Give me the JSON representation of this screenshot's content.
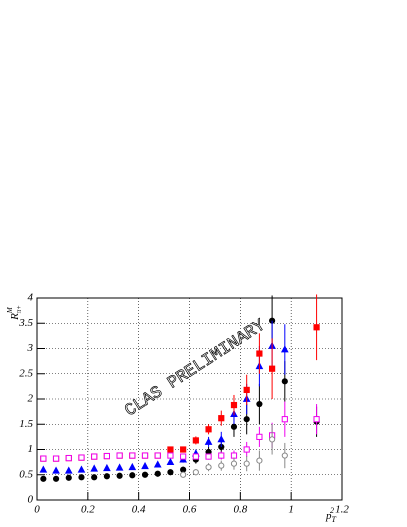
{
  "chart_data": {
    "type": "scatter",
    "ylabel": "R",
    "ylabel_sup": "M",
    "ylabel_sub": "π+",
    "xlabel": "p",
    "xlabel_sub": "T",
    "xlabel_sup": "2",
    "annotation": "CLAS PRELIMINARY",
    "xlim": [
      0,
      1.2
    ],
    "ylim": [
      0,
      4
    ],
    "xticks": [
      0,
      0.2,
      0.4,
      0.6,
      0.8,
      1,
      1.2
    ],
    "yticks": [
      0,
      0.5,
      1,
      1.5,
      2,
      2.5,
      3,
      3.5,
      4
    ],
    "grid": true,
    "series": [
      {
        "color": "#000000",
        "marker": "circle",
        "filled": true,
        "x": [
          0.025,
          0.075,
          0.125,
          0.175,
          0.225,
          0.275,
          0.325,
          0.375,
          0.425,
          0.475,
          0.525,
          0.575,
          0.625,
          0.675,
          0.725,
          0.775,
          0.825,
          0.875,
          0.925,
          0.975,
          1.1
        ],
        "values": [
          0.42,
          0.42,
          0.44,
          0.45,
          0.45,
          0.47,
          0.48,
          0.49,
          0.5,
          0.52,
          0.55,
          0.6,
          0.8,
          0.95,
          1.05,
          1.45,
          1.6,
          1.9,
          3.55,
          2.35,
          1.55
        ],
        "errors": [
          0.03,
          0.03,
          0.03,
          0.03,
          0.03,
          0.03,
          0.03,
          0.03,
          0.03,
          0.04,
          0.05,
          0.06,
          0.08,
          0.1,
          0.15,
          0.2,
          0.3,
          0.4,
          0.5,
          0.4,
          0.3
        ]
      },
      {
        "color": "#0000ff",
        "marker": "triangle",
        "filled": true,
        "x": [
          0.025,
          0.075,
          0.125,
          0.175,
          0.225,
          0.275,
          0.325,
          0.375,
          0.425,
          0.475,
          0.525,
          0.575,
          0.625,
          0.675,
          0.725,
          0.775,
          0.825,
          0.875,
          0.925,
          0.975
        ],
        "values": [
          0.6,
          0.58,
          0.58,
          0.6,
          0.62,
          0.63,
          0.64,
          0.65,
          0.67,
          0.7,
          0.75,
          0.8,
          0.92,
          1.15,
          1.2,
          1.7,
          2.0,
          2.65,
          3.05,
          2.98
        ],
        "errors": [
          0.03,
          0.03,
          0.03,
          0.03,
          0.03,
          0.03,
          0.03,
          0.03,
          0.03,
          0.04,
          0.05,
          0.06,
          0.08,
          0.1,
          0.15,
          0.2,
          0.3,
          0.4,
          0.5,
          0.5
        ]
      },
      {
        "color": "#ff0000",
        "marker": "square",
        "filled": true,
        "x": [
          0.025,
          0.075,
          0.125,
          0.175,
          0.225,
          0.275,
          0.325,
          0.375,
          0.425,
          0.475,
          0.525,
          0.575,
          0.625,
          0.675,
          0.725,
          0.775,
          0.825,
          0.875,
          0.925,
          1.1
        ],
        "values": [
          0.82,
          0.82,
          0.83,
          0.84,
          0.86,
          0.87,
          0.88,
          0.88,
          0.88,
          0.88,
          1.0,
          1.0,
          1.18,
          1.4,
          1.62,
          1.88,
          2.18,
          2.9,
          2.6,
          3.42
        ],
        "errors": [
          0.03,
          0.03,
          0.03,
          0.03,
          0.03,
          0.03,
          0.03,
          0.03,
          0.03,
          0.04,
          0.05,
          0.06,
          0.08,
          0.1,
          0.15,
          0.2,
          0.3,
          0.4,
          0.6,
          0.65
        ]
      },
      {
        "color": "#ee00ee",
        "marker": "square",
        "filled": false,
        "x": [
          0.025,
          0.075,
          0.125,
          0.175,
          0.225,
          0.275,
          0.325,
          0.375,
          0.425,
          0.475,
          0.525,
          0.575,
          0.625,
          0.675,
          0.725,
          0.775,
          0.825,
          0.875,
          0.925,
          0.975,
          1.1
        ],
        "values": [
          0.82,
          0.82,
          0.83,
          0.84,
          0.86,
          0.87,
          0.88,
          0.88,
          0.88,
          0.88,
          0.88,
          0.86,
          0.86,
          0.86,
          0.88,
          0.88,
          1.0,
          1.25,
          1.28,
          1.6,
          1.6
        ],
        "errors": [
          0.03,
          0.03,
          0.03,
          0.03,
          0.03,
          0.03,
          0.03,
          0.03,
          0.03,
          0.04,
          0.05,
          0.05,
          0.05,
          0.06,
          0.08,
          0.1,
          0.15,
          0.2,
          0.25,
          0.35,
          0.3
        ]
      },
      {
        "color": "#888888",
        "marker": "circle",
        "filled": false,
        "x": [
          0.575,
          0.625,
          0.675,
          0.725,
          0.775,
          0.825,
          0.875,
          0.925,
          0.975
        ],
        "values": [
          0.5,
          0.55,
          0.65,
          0.68,
          0.72,
          0.72,
          0.78,
          1.2,
          0.88
        ],
        "errors": [
          0.05,
          0.06,
          0.08,
          0.1,
          0.12,
          0.15,
          0.2,
          0.3,
          0.25
        ]
      }
    ]
  }
}
